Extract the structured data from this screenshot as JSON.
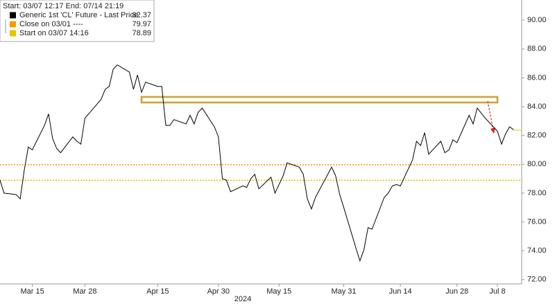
{
  "chart_data": {
    "type": "line",
    "header": "Start: 03/07 12:17 End: 07/14 21:19",
    "x": [
      "2024-03-07",
      "2024-03-08",
      "2024-03-11",
      "2024-03-12",
      "2024-03-13",
      "2024-03-14",
      "2024-03-15",
      "2024-03-18",
      "2024-03-19",
      "2024-03-20",
      "2024-03-21",
      "2024-03-22",
      "2024-03-25",
      "2024-03-26",
      "2024-03-27",
      "2024-03-28",
      "2024-04-01",
      "2024-04-02",
      "2024-04-03",
      "2024-04-04",
      "2024-04-05",
      "2024-04-08",
      "2024-04-09",
      "2024-04-10",
      "2024-04-11",
      "2024-04-12",
      "2024-04-15",
      "2024-04-16",
      "2024-04-17",
      "2024-04-18",
      "2024-04-19",
      "2024-04-22",
      "2024-04-23",
      "2024-04-24",
      "2024-04-25",
      "2024-04-26",
      "2024-04-29",
      "2024-04-30",
      "2024-05-01",
      "2024-05-02",
      "2024-05-03",
      "2024-05-06",
      "2024-05-07",
      "2024-05-08",
      "2024-05-09",
      "2024-05-10",
      "2024-05-13",
      "2024-05-14",
      "2024-05-15",
      "2024-05-16",
      "2024-05-17",
      "2024-05-20",
      "2024-05-21",
      "2024-05-22",
      "2024-05-23",
      "2024-05-24",
      "2024-05-28",
      "2024-05-29",
      "2024-05-30",
      "2024-05-31",
      "2024-06-03",
      "2024-06-04",
      "2024-06-05",
      "2024-06-06",
      "2024-06-07",
      "2024-06-10",
      "2024-06-11",
      "2024-06-12",
      "2024-06-13",
      "2024-06-14",
      "2024-06-17",
      "2024-06-18",
      "2024-06-19",
      "2024-06-20",
      "2024-06-21",
      "2024-06-24",
      "2024-06-25",
      "2024-06-26",
      "2024-06-27",
      "2024-06-28",
      "2024-07-01",
      "2024-07-02",
      "2024-07-03",
      "2024-07-05",
      "2024-07-08",
      "2024-07-09",
      "2024-07-10",
      "2024-07-11",
      "2024-07-12"
    ],
    "series": [
      {
        "name": "Generic 1st 'CL' Future - Last Price",
        "color": "#000000",
        "last_value": 82.37,
        "values": [
          78.9,
          78.0,
          77.9,
          77.6,
          79.6,
          81.2,
          81.0,
          82.7,
          83.5,
          81.8,
          81.1,
          80.8,
          81.9,
          81.6,
          81.4,
          83.2,
          84.5,
          85.2,
          85.4,
          86.6,
          86.9,
          86.4,
          85.2,
          86.2,
          85.0,
          85.7,
          85.4,
          85.4,
          82.7,
          82.7,
          83.1,
          82.8,
          83.4,
          82.8,
          83.6,
          83.9,
          82.6,
          81.9,
          79.0,
          78.9,
          78.1,
          78.5,
          78.4,
          79.0,
          79.3,
          78.3,
          79.1,
          78.0,
          78.6,
          79.2,
          80.1,
          79.8,
          79.3,
          77.6,
          76.9,
          77.7,
          79.8,
          79.2,
          77.9,
          77.0,
          74.2,
          73.3,
          74.1,
          75.6,
          75.5,
          77.7,
          78.0,
          78.5,
          78.6,
          78.5,
          80.3,
          81.6,
          81.3,
          82.2,
          80.7,
          81.6,
          80.8,
          81.0,
          81.7,
          81.5,
          83.4,
          82.8,
          83.9,
          83.2,
          82.3,
          81.4,
          82.1,
          82.6,
          82.4
        ]
      }
    ],
    "reference_lines": [
      {
        "name": "Close on 03/01 ----",
        "value": 79.97,
        "color": "#f59b00"
      },
      {
        "name": "Start on 03/07 14:16",
        "value": 78.89,
        "color": "#e8c400"
      }
    ],
    "xlim": [
      "2024-03-07",
      "2024-07-14"
    ],
    "xticks": [
      {
        "value": "2024-03-15",
        "label": "Mar 15"
      },
      {
        "value": "2024-03-28",
        "label": "Mar 28"
      },
      {
        "value": "2024-04-15",
        "label": "Apr 15"
      },
      {
        "value": "2024-04-30",
        "label": "Apr 30"
      },
      {
        "value": "2024-05-15",
        "label": "May 15"
      },
      {
        "value": "2024-05-31",
        "label": "May 31"
      },
      {
        "value": "2024-06-14",
        "label": "Jun 14"
      },
      {
        "value": "2024-06-28",
        "label": "Jun 28"
      },
      {
        "value": "2024-07-08",
        "label": "Jul 8"
      }
    ],
    "year_label": "2024",
    "ylim": [
      71.7,
      91.4
    ],
    "yticks": [
      {
        "value": 72,
        "label": "72.00"
      },
      {
        "value": 74,
        "label": "74.00"
      },
      {
        "value": 76,
        "label": "76.00"
      },
      {
        "value": 78,
        "label": "78.00"
      },
      {
        "value": 80,
        "label": "80.00"
      },
      {
        "value": 82,
        "label": "82.00"
      },
      {
        "value": 84,
        "label": "84.00"
      },
      {
        "value": 86,
        "label": "86.00"
      },
      {
        "value": 88,
        "label": "88.00"
      },
      {
        "value": 90,
        "label": "90.00"
      }
    ]
  }
}
